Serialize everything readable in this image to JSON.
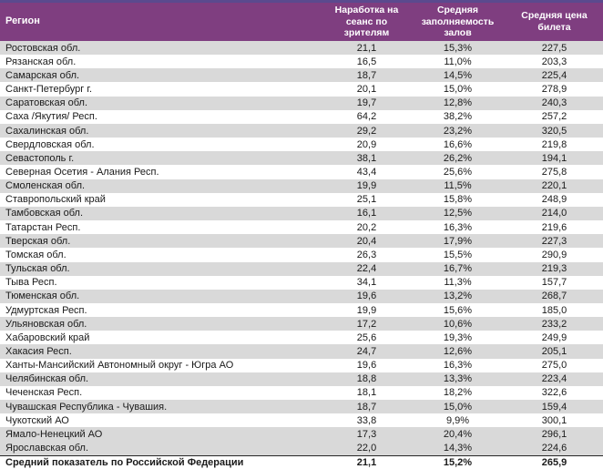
{
  "colors": {
    "header_background": "#7f3e80",
    "header_top_strip": "#5b4a8e",
    "header_text": "#ffffff",
    "row_shaded_background": "#d9d9d9",
    "row_background": "#ffffff",
    "body_text": "#1a1a1a",
    "total_separator_line": "#262626"
  },
  "table": {
    "columns": [
      {
        "key": "region",
        "label": "Регион",
        "align": "left"
      },
      {
        "key": "attendance",
        "label": "Наработка на сеанс по зрителям",
        "align": "center"
      },
      {
        "key": "occupancy",
        "label": "Средняя заполняемость залов",
        "align": "center"
      },
      {
        "key": "price",
        "label": "Средняя цена билета",
        "align": "center"
      }
    ],
    "rows": [
      {
        "region": "Ростовская обл.",
        "attendance": "21,1",
        "occupancy": "15,3%",
        "price": "227,5",
        "shaded": true
      },
      {
        "region": "Рязанская обл.",
        "attendance": "16,5",
        "occupancy": "11,0%",
        "price": "203,3",
        "shaded": false
      },
      {
        "region": "Самарская обл.",
        "attendance": "18,7",
        "occupancy": "14,5%",
        "price": "225,4",
        "shaded": true
      },
      {
        "region": "Санкт-Петербург г.",
        "attendance": "20,1",
        "occupancy": "15,0%",
        "price": "278,9",
        "shaded": false
      },
      {
        "region": "Саратовская обл.",
        "attendance": "19,7",
        "occupancy": "12,8%",
        "price": "240,3",
        "shaded": true
      },
      {
        "region": "Саха /Якутия/ Респ.",
        "attendance": "64,2",
        "occupancy": "38,2%",
        "price": "257,2",
        "shaded": false
      },
      {
        "region": "Сахалинская обл.",
        "attendance": "29,2",
        "occupancy": "23,2%",
        "price": "320,5",
        "shaded": true
      },
      {
        "region": "Свердловская обл.",
        "attendance": "20,9",
        "occupancy": "16,6%",
        "price": "219,8",
        "shaded": false
      },
      {
        "region": "Севастополь г.",
        "attendance": "38,1",
        "occupancy": "26,2%",
        "price": "194,1",
        "shaded": true
      },
      {
        "region": "Северная Осетия - Алания Респ.",
        "attendance": "43,4",
        "occupancy": "25,6%",
        "price": "275,8",
        "shaded": false
      },
      {
        "region": "Смоленская обл.",
        "attendance": "19,9",
        "occupancy": "11,5%",
        "price": "220,1",
        "shaded": true
      },
      {
        "region": "Ставропольский край",
        "attendance": "25,1",
        "occupancy": "15,8%",
        "price": "248,9",
        "shaded": false
      },
      {
        "region": "Тамбовская обл.",
        "attendance": "16,1",
        "occupancy": "12,5%",
        "price": "214,0",
        "shaded": true
      },
      {
        "region": "Татарстан Респ.",
        "attendance": "20,2",
        "occupancy": "16,3%",
        "price": "219,6",
        "shaded": false
      },
      {
        "region": "Тверская обл.",
        "attendance": "20,4",
        "occupancy": "17,9%",
        "price": "227,3",
        "shaded": true
      },
      {
        "region": "Томская обл.",
        "attendance": "26,3",
        "occupancy": "15,5%",
        "price": "290,9",
        "shaded": false
      },
      {
        "region": "Тульская обл.",
        "attendance": "22,4",
        "occupancy": "16,7%",
        "price": "219,3",
        "shaded": true
      },
      {
        "region": "Тыва Респ.",
        "attendance": "34,1",
        "occupancy": "11,3%",
        "price": "157,7",
        "shaded": false
      },
      {
        "region": "Тюменская обл.",
        "attendance": "19,6",
        "occupancy": "13,2%",
        "price": "268,7",
        "shaded": true
      },
      {
        "region": "Удмуртская Респ.",
        "attendance": "19,9",
        "occupancy": "15,6%",
        "price": "185,0",
        "shaded": false
      },
      {
        "region": "Ульяновская обл.",
        "attendance": "17,2",
        "occupancy": "10,6%",
        "price": "233,2",
        "shaded": true
      },
      {
        "region": "Хабаровский край",
        "attendance": "25,6",
        "occupancy": "19,3%",
        "price": "249,9",
        "shaded": false
      },
      {
        "region": "Хакасия Респ.",
        "attendance": "24,7",
        "occupancy": "12,6%",
        "price": "205,1",
        "shaded": true
      },
      {
        "region": "Ханты-Мансийский Автономный округ - Югра АО",
        "attendance": "19,6",
        "occupancy": "16,3%",
        "price": "275,0",
        "shaded": false
      },
      {
        "region": "Челябинская обл.",
        "attendance": "18,8",
        "occupancy": "13,3%",
        "price": "223,4",
        "shaded": true
      },
      {
        "region": "Чеченская Респ.",
        "attendance": "18,1",
        "occupancy": "18,2%",
        "price": "322,6",
        "shaded": false
      },
      {
        "region": "Чувашская Республика - Чувашия.",
        "attendance": "18,7",
        "occupancy": "15,0%",
        "price": "159,4",
        "shaded": true
      },
      {
        "region": "Чукотский АО",
        "attendance": "33,8",
        "occupancy": "9,9%",
        "price": "300,1",
        "shaded": false
      },
      {
        "region": "Ямало-Ненецкий АО",
        "attendance": "17,3",
        "occupancy": "20,4%",
        "price": "296,1",
        "shaded": true
      },
      {
        "region": "Ярославская обл.",
        "attendance": "22,0",
        "occupancy": "14,3%",
        "price": "224,6",
        "shaded": true
      }
    ],
    "total_row": {
      "region": "Средний показатель по Российской Федерации",
      "attendance": "21,1",
      "occupancy": "15,2%",
      "price": "265,9"
    }
  }
}
